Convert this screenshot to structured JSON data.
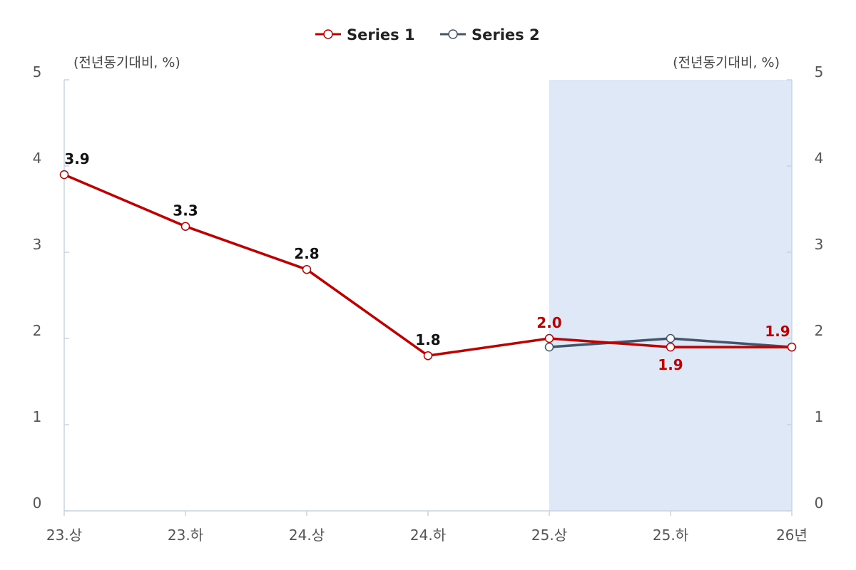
{
  "chart_data": {
    "type": "line",
    "categories": [
      "23.상",
      "23.하",
      "24.상",
      "24.하",
      "25.상",
      "25.하",
      "26년"
    ],
    "series": [
      {
        "name": "Series 1",
        "color": "#c00000",
        "values": [
          3.9,
          3.3,
          2.8,
          1.8,
          2.0,
          1.9,
          1.9
        ],
        "labels": [
          "3.9",
          "3.3",
          "2.8",
          "1.8",
          "2.0",
          "1.9",
          "1.9"
        ],
        "label_colors": [
          "#111111",
          "#111111",
          "#111111",
          "#111111",
          "#c00000",
          "#c00000",
          "#c00000"
        ],
        "label_positions": [
          "above",
          "above",
          "above",
          "above",
          "above",
          "below",
          "above"
        ]
      },
      {
        "name": "Series 2",
        "color": "#44546a",
        "values": [
          null,
          null,
          null,
          null,
          1.9,
          2.0,
          1.9
        ]
      }
    ],
    "y_left": {
      "ticks": [
        "0",
        "1",
        "2",
        "3",
        "4",
        "5"
      ],
      "unit": "(전년동기대비, %)"
    },
    "y_right": {
      "ticks": [
        "0",
        "1",
        "2",
        "3",
        "4",
        "5"
      ],
      "unit": "(전년동기대비, %)"
    },
    "ylim": [
      0,
      5
    ],
    "shaded_range": {
      "from": "25.상",
      "to": "26년",
      "color": "#dfe8f7"
    },
    "grid": false,
    "legend": "top-center"
  }
}
